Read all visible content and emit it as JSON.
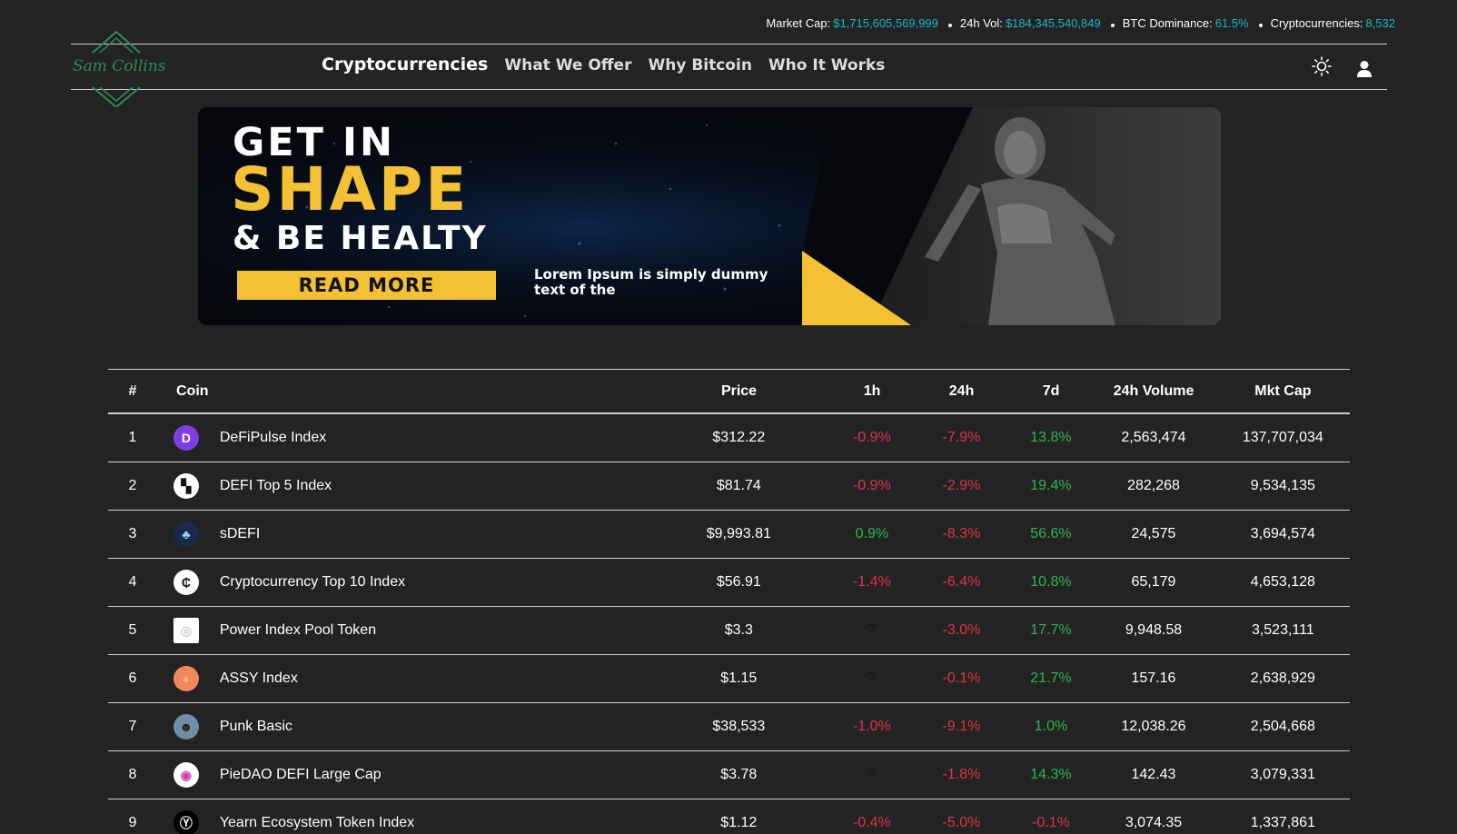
{
  "stats": {
    "market_cap_label": "Market Cap:",
    "market_cap_value": "$1,715,605,569,999",
    "vol_label": "24h Vol:",
    "vol_value": "$184,345,540,849",
    "btc_label": "BTC Dominance:",
    "btc_value": "61.5%",
    "crypto_label": "Cryptocurrencies:",
    "crypto_value": "8,532",
    "accent_color": "#19b7c9"
  },
  "logo": {
    "text": "Sam Collins",
    "color": "#2e8b57"
  },
  "nav": {
    "items": [
      {
        "label": "Cryptocurrencies"
      },
      {
        "label": "What We Offer"
      },
      {
        "label": "Why Bitcoin"
      },
      {
        "label": "Who It Works"
      }
    ]
  },
  "header_icons": {
    "theme": "sun-icon",
    "account": "user-icon"
  },
  "banner": {
    "line1": "GET IN",
    "line2": "SHAPE",
    "line3": "& BE HEALTY",
    "button": "READ MORE",
    "desc": "Lorem Ipsum is simply dummy text of the",
    "accent_color": "#f3c133"
  },
  "table": {
    "headers": {
      "rank": "#",
      "coin": "Coin",
      "price": "Price",
      "h1": "1h",
      "h24": "24h",
      "d7": "7d",
      "volume": "24h Volume",
      "cap": "Mkt Cap"
    },
    "colors": {
      "negative": "#e0344b",
      "positive": "#2fb553"
    },
    "rows": [
      {
        "rank": "1",
        "icon": "defipulse-icon",
        "name": "DeFiPulse Index",
        "price": "$312.22",
        "h1": "-0.9%",
        "h24": "-7.9%",
        "d7": "13.8%",
        "volume": "2,563,474",
        "cap": "137,707,034"
      },
      {
        "rank": "2",
        "icon": "defi-top5-icon",
        "name": "DEFI Top 5 Index",
        "price": "$81.74",
        "h1": "-0.9%",
        "h24": "-2.9%",
        "d7": "19.4%",
        "volume": "282,268",
        "cap": "9,534,135"
      },
      {
        "rank": "3",
        "icon": "sdefi-icon",
        "name": "sDEFI",
        "price": "$9,993.81",
        "h1": "0.9%",
        "h24": "-8.3%",
        "d7": "56.6%",
        "volume": "24,575",
        "cap": "3,694,574"
      },
      {
        "rank": "4",
        "icon": "crypto-top10-icon",
        "name": "Cryptocurrency Top 10 Index",
        "price": "$56.91",
        "h1": "-1.4%",
        "h24": "-6.4%",
        "d7": "10.8%",
        "volume": "65,179",
        "cap": "4,653,128"
      },
      {
        "rank": "5",
        "icon": "power-index-icon",
        "name": "Power Index Pool Token",
        "price": "$3.3",
        "h1": "?",
        "h24": "-3.0%",
        "d7": "17.7%",
        "volume": "9,948.58",
        "cap": "3,523,111"
      },
      {
        "rank": "6",
        "icon": "assy-icon",
        "name": "ASSY Index",
        "price": "$1.15",
        "h1": "?",
        "h24": "-0.1%",
        "d7": "21.7%",
        "volume": "157.16",
        "cap": "2,638,929"
      },
      {
        "rank": "7",
        "icon": "punk-basic-icon",
        "name": "Punk Basic",
        "price": "$38,533",
        "h1": "-1.0%",
        "h24": "-9.1%",
        "d7": "1.0%",
        "volume": "12,038.26",
        "cap": "2,504,668"
      },
      {
        "rank": "8",
        "icon": "piedao-icon",
        "name": "PieDAO DEFI Large Cap",
        "price": "$3.78",
        "h1": "?",
        "h24": "-1.8%",
        "d7": "14.3%",
        "volume": "142.43",
        "cap": "3,079,331"
      },
      {
        "rank": "9",
        "icon": "yearn-icon",
        "name": "Yearn Ecosystem Token Index",
        "price": "$1.12",
        "h1": "-0.4%",
        "h24": "-5.0%",
        "d7": "-0.1%",
        "volume": "3,074.35",
        "cap": "1,337,861"
      }
    ]
  }
}
